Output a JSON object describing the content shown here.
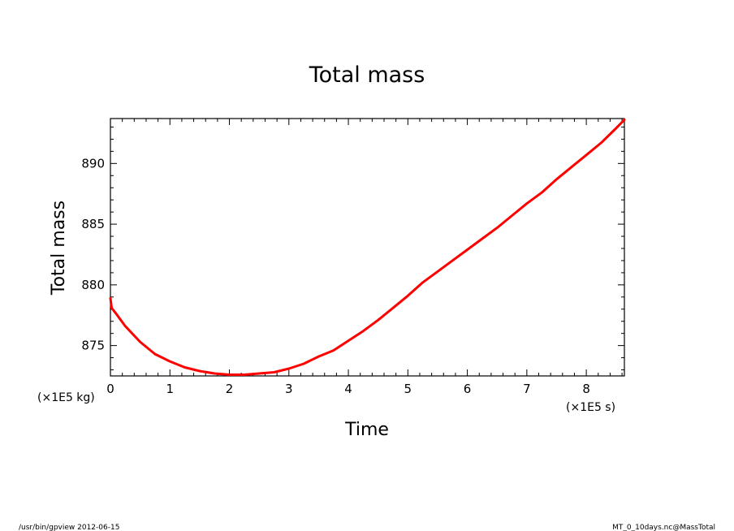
{
  "chart_data": {
    "type": "line",
    "title": "Total mass",
    "xlabel": "Time",
    "ylabel": "Total mass",
    "x_unit": "(×1E5 s)",
    "y_unit": "(×1E5 kg)",
    "xlim": [
      0,
      8.64
    ],
    "ylim": [
      872.5,
      893.7
    ],
    "x_ticks": [
      0,
      1,
      2,
      3,
      4,
      5,
      6,
      7,
      8
    ],
    "y_ticks": [
      875,
      880,
      885,
      890
    ],
    "grid": false,
    "line_color": "#ff0000",
    "series": [
      {
        "x": [
          0,
          0.02,
          0.1,
          0.25,
          0.5,
          0.75,
          1.0,
          1.25,
          1.5,
          1.75,
          2.0,
          2.25,
          2.5,
          2.75,
          3.0,
          3.25,
          3.5,
          3.75,
          4.0,
          4.25,
          4.5,
          4.75,
          5.0,
          5.25,
          5.5,
          5.75,
          6.0,
          6.25,
          6.5,
          6.75,
          7.0,
          7.25,
          7.5,
          7.75,
          8.0,
          8.25,
          8.5,
          8.64
        ],
        "y": [
          878.9,
          878.1,
          877.6,
          876.6,
          875.3,
          874.3,
          873.7,
          873.2,
          872.9,
          872.7,
          872.6,
          872.6,
          872.7,
          872.8,
          873.1,
          873.5,
          874.1,
          874.6,
          875.4,
          876.2,
          877.1,
          878.1,
          879.1,
          880.2,
          881.1,
          882.0,
          882.9,
          883.8,
          884.7,
          885.7,
          886.7,
          887.6,
          888.7,
          889.7,
          890.7,
          891.7,
          892.9,
          893.6
        ]
      }
    ]
  },
  "footer": {
    "left": "/usr/bin/gpview  2012-06-15",
    "right": "MT_0_10days.nc@MassTotal"
  }
}
